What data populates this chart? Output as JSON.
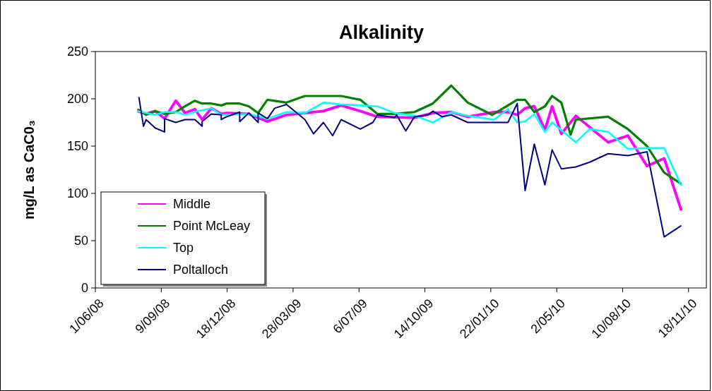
{
  "chart_data": {
    "type": "line",
    "title": "Alkalinity",
    "ylabel": "mg/L as CaC0₃",
    "xlim": [
      "2008-06-01",
      "2010-12-15"
    ],
    "xticks": [
      {
        "value": "2008-06-01",
        "label": "1/06/08"
      },
      {
        "value": "2008-09-09",
        "label": "9/09/08"
      },
      {
        "value": "2008-12-18",
        "label": "18/12/08"
      },
      {
        "value": "2009-03-28",
        "label": "28/03/09"
      },
      {
        "value": "2009-07-06",
        "label": "6/07/09"
      },
      {
        "value": "2009-10-14",
        "label": "14/10/09"
      },
      {
        "value": "2010-01-22",
        "label": "22/01/10"
      },
      {
        "value": "2010-05-02",
        "label": "2/05/10"
      },
      {
        "value": "2010-08-10",
        "label": "10/08/10"
      },
      {
        "value": "2010-11-18",
        "label": "18/11/10"
      }
    ],
    "ylim": [
      0,
      250
    ],
    "yticks": [
      0,
      50,
      100,
      150,
      200,
      250
    ],
    "grid": false,
    "legend": "bottom left",
    "marker": "none",
    "line_style": "solid",
    "series": [
      {
        "name": "Middle",
        "color": "#ff00ff",
        "x": [
          "2008-08-04",
          "2008-08-17",
          "2008-08-31",
          "2008-09-14",
          "2008-10-01",
          "2008-10-15",
          "2008-10-30",
          "2008-11-10",
          "2008-11-24",
          "2008-12-09",
          "2008-12-17",
          "2009-01-20",
          "2009-02-17",
          "2009-03-18",
          "2009-05-13",
          "2009-06-09",
          "2009-07-08",
          "2009-08-03",
          "2009-09-28",
          "2009-10-26",
          "2009-11-23",
          "2009-12-18",
          "2010-01-27",
          "2010-02-17",
          "2010-03-03",
          "2010-03-15",
          "2010-03-29",
          "2010-04-14",
          "2010-04-25",
          "2010-05-09",
          "2010-05-31",
          "2010-07-19",
          "2010-08-18",
          "2010-09-16",
          "2010-10-12",
          "2010-11-07"
        ],
        "values": [
          187,
          184,
          187,
          179,
          198,
          185,
          189,
          178,
          190,
          184,
          185,
          184,
          176,
          183,
          187,
          193,
          187,
          181,
          180,
          185,
          186,
          181,
          186,
          186,
          183,
          190,
          192,
          167,
          192,
          163,
          182,
          154,
          161,
          129,
          137,
          82
        ]
      },
      {
        "name": "Point McLeay",
        "color": "#008000",
        "x": [
          "2008-08-04",
          "2008-08-17",
          "2008-08-31",
          "2008-09-14",
          "2008-10-01",
          "2008-10-15",
          "2008-10-30",
          "2008-11-10",
          "2008-11-24",
          "2008-12-09",
          "2008-12-17",
          "2009-01-06",
          "2009-01-20",
          "2009-02-03",
          "2009-02-17",
          "2009-03-18",
          "2009-04-15",
          "2009-06-09",
          "2009-07-08",
          "2009-08-03",
          "2009-08-29",
          "2009-09-28",
          "2009-10-26",
          "2009-11-23",
          "2009-12-18",
          "2010-01-24",
          "2010-02-17",
          "2010-03-03",
          "2010-03-15",
          "2010-03-29",
          "2010-04-14",
          "2010-04-25",
          "2010-05-09",
          "2010-05-23",
          "2010-05-31",
          "2010-07-19",
          "2010-08-18",
          "2010-09-16",
          "2010-10-12",
          "2010-11-07"
        ],
        "values": [
          189,
          183,
          187,
          184,
          186,
          192,
          198,
          195,
          195,
          193,
          195,
          195,
          192,
          185,
          199,
          196,
          203,
          203,
          199,
          184,
          184,
          186,
          195,
          214,
          196,
          183,
          193,
          199,
          199,
          186,
          192,
          203,
          196,
          162,
          178,
          181,
          168,
          150,
          122,
          110
        ]
      },
      {
        "name": "Top",
        "color": "#00ffff",
        "x": [
          "2008-08-04",
          "2008-08-31",
          "2008-09-14",
          "2008-10-01",
          "2008-10-15",
          "2008-11-03",
          "2008-11-24",
          "2008-12-09",
          "2009-01-20",
          "2009-02-17",
          "2009-03-18",
          "2009-04-15",
          "2009-05-13",
          "2009-06-09",
          "2009-07-08",
          "2009-08-03",
          "2009-08-29",
          "2009-09-28",
          "2009-10-26",
          "2009-11-23",
          "2009-12-18",
          "2010-01-27",
          "2010-02-17",
          "2010-03-03",
          "2010-03-15",
          "2010-03-29",
          "2010-04-14",
          "2010-04-25",
          "2010-05-31",
          "2010-06-21",
          "2010-07-19",
          "2010-08-18",
          "2010-09-16",
          "2010-10-12",
          "2010-11-07"
        ],
        "values": [
          187,
          183,
          186,
          186,
          183,
          187,
          190,
          183,
          184,
          179,
          186,
          185,
          196,
          194,
          193,
          192,
          185,
          182,
          175,
          186,
          182,
          178,
          189,
          175,
          176,
          184,
          165,
          175,
          154,
          168,
          165,
          147,
          148,
          148,
          108
        ]
      },
      {
        "name": "Poltalloch",
        "color": "#000080",
        "x": [
          "2008-08-06",
          "2008-08-13",
          "2008-08-17",
          "2008-08-31",
          "2008-09-14",
          "2008-09-14",
          "2008-10-01",
          "2008-10-15",
          "2008-10-30",
          "2008-11-10",
          "2008-11-10",
          "2008-11-24",
          "2008-12-09",
          "2008-12-09",
          "2008-12-17",
          "2009-01-06",
          "2009-01-06",
          "2009-01-20",
          "2009-02-03",
          "2009-02-03",
          "2009-02-17",
          "2009-02-28",
          "2009-03-18",
          "2009-04-15",
          "2009-04-28",
          "2009-05-13",
          "2009-05-27",
          "2009-06-09",
          "2009-07-08",
          "2009-07-27",
          "2009-08-03",
          "2009-08-29",
          "2009-09-01",
          "2009-09-15",
          "2009-09-28",
          "2009-10-19",
          "2009-10-26",
          "2009-11-09",
          "2009-11-23",
          "2009-12-18",
          "2010-02-17",
          "2010-03-03",
          "2010-03-15",
          "2010-03-29",
          "2010-04-14",
          "2010-04-25",
          "2010-05-09",
          "2010-05-31",
          "2010-06-21",
          "2010-07-19",
          "2010-08-18",
          "2010-09-16",
          "2010-10-12",
          "2010-11-07"
        ],
        "values": [
          202,
          171,
          178,
          169,
          165,
          179,
          175,
          178,
          178,
          171,
          176,
          184,
          183,
          178,
          181,
          186,
          176,
          185,
          175,
          185,
          179,
          190,
          194,
          178,
          163,
          175,
          161,
          178,
          168,
          175,
          183,
          180,
          183,
          166,
          181,
          183,
          187,
          181,
          183,
          175,
          175,
          195,
          103,
          152,
          109,
          146,
          126,
          128,
          133,
          142,
          140,
          144,
          54,
          66
        ]
      }
    ]
  }
}
